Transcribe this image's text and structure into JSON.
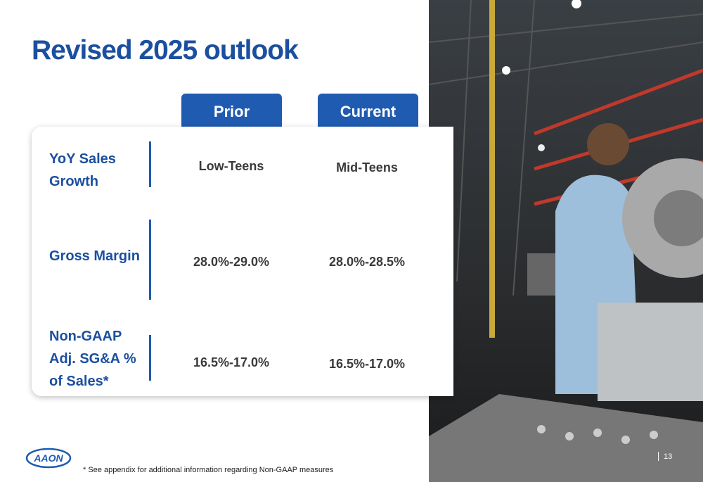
{
  "header": {
    "title": "Revised 2025 outlook"
  },
  "table": {
    "columns": [
      "Prior",
      "Current"
    ],
    "rows": [
      {
        "label": "YoY Sales\nGrowth",
        "values": [
          "Low-Teens",
          "Mid-Teens"
        ]
      },
      {
        "label": "Gross Margin",
        "values": [
          "28.0%-29.0%",
          "28.0%-28.5%"
        ]
      },
      {
        "label": "Non-GAAP\nAdj. SG&A %\nof Sales*",
        "values": [
          "16.5%-17.0%",
          "16.5%-17.0%"
        ]
      }
    ]
  },
  "footer": {
    "logo": "AAON",
    "note": "* See appendix for additional information regarding Non-GAAP measures",
    "page": "13"
  }
}
